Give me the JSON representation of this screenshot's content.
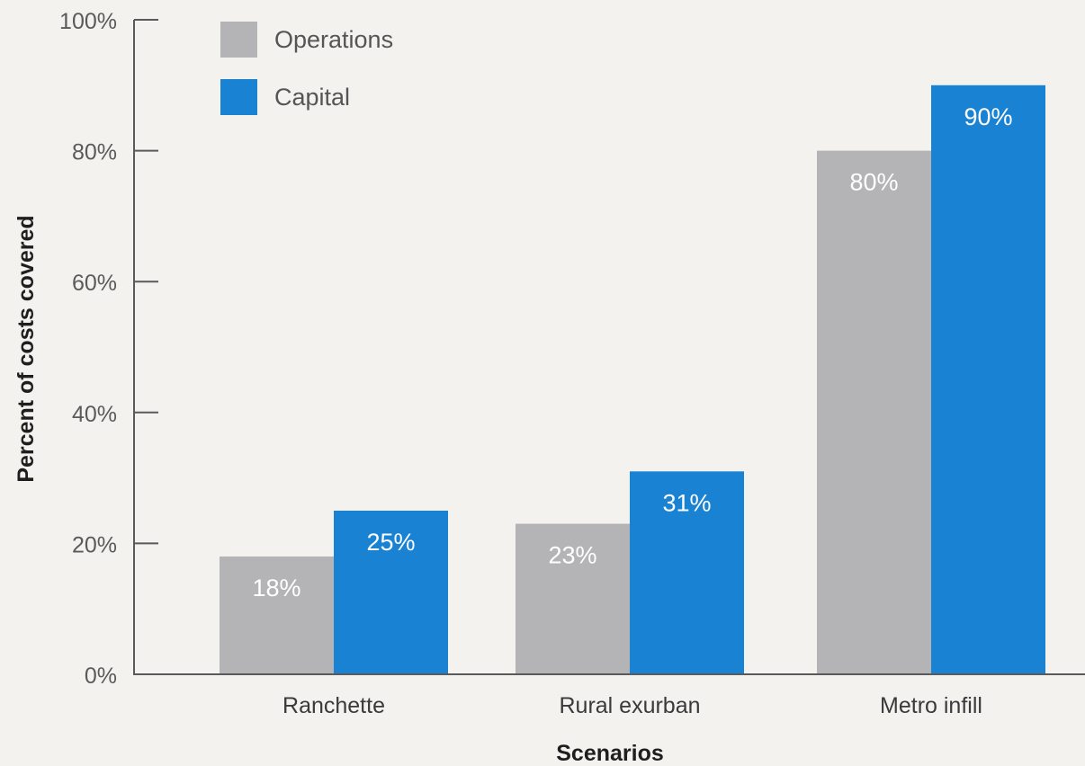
{
  "chart_data": {
    "type": "bar",
    "categories": [
      "Ranchette",
      "Rural exurban",
      "Metro infill"
    ],
    "series": [
      {
        "name": "Operations",
        "color": "#b4b4b6",
        "values": [
          18,
          23,
          80
        ],
        "labels": [
          "18%",
          "23%",
          "80%"
        ]
      },
      {
        "name": "Capital",
        "color": "#1a82d2",
        "values": [
          25,
          31,
          90
        ],
        "labels": [
          "25%",
          "31%",
          "90%"
        ]
      }
    ],
    "title": "",
    "xlabel": "Scenarios",
    "ylabel": "Percent of costs covered",
    "ylim": [
      0,
      100
    ],
    "yticks": [
      0,
      20,
      40,
      60,
      80,
      100
    ],
    "ytick_labels": [
      "0%",
      "20%",
      "40%",
      "60%",
      "80%",
      "100%"
    ],
    "grid": false,
    "legend": "top-left"
  }
}
